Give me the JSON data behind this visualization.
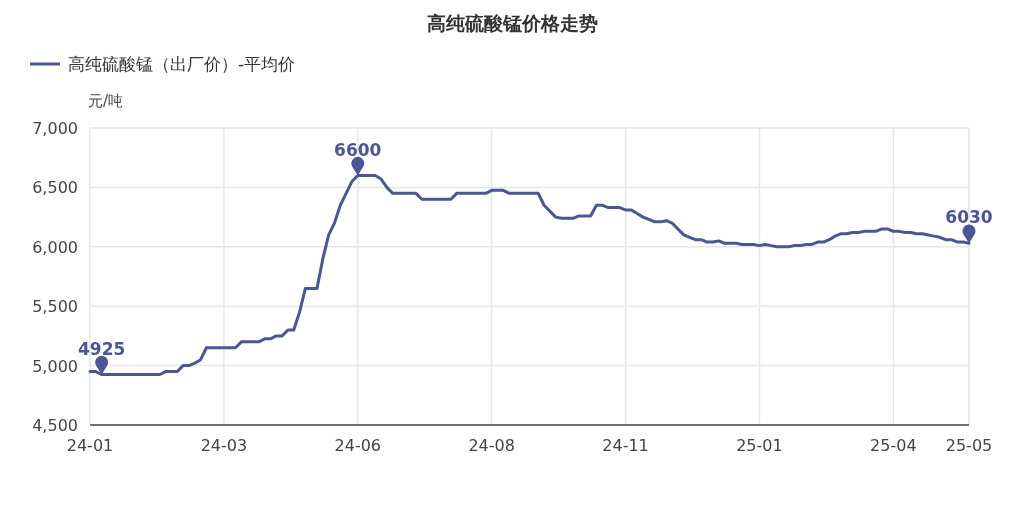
{
  "chart_data": {
    "type": "line",
    "title": "高纯硫酸锰价格走势",
    "ylabel": "元/吨",
    "categories": [
      "24-01",
      null,
      null,
      null,
      null,
      null,
      null,
      null,
      null,
      null,
      null,
      null,
      null,
      null,
      null,
      null,
      null,
      null,
      null,
      null,
      null,
      null,
      null,
      "24-03",
      null,
      null,
      null,
      null,
      null,
      null,
      null,
      null,
      null,
      null,
      null,
      null,
      null,
      null,
      null,
      null,
      null,
      null,
      null,
      null,
      null,
      null,
      "24-06",
      null,
      null,
      null,
      null,
      null,
      null,
      null,
      null,
      null,
      null,
      null,
      null,
      null,
      null,
      null,
      null,
      null,
      null,
      null,
      null,
      null,
      null,
      "24-08",
      null,
      null,
      null,
      null,
      null,
      null,
      null,
      null,
      null,
      null,
      null,
      null,
      null,
      null,
      null,
      null,
      null,
      null,
      null,
      null,
      null,
      null,
      "24-11",
      null,
      null,
      null,
      null,
      null,
      null,
      null,
      null,
      null,
      null,
      null,
      null,
      null,
      null,
      null,
      null,
      null,
      null,
      null,
      null,
      null,
      null,
      "25-01",
      null,
      null,
      null,
      null,
      null,
      null,
      null,
      null,
      null,
      null,
      null,
      null,
      null,
      null,
      null,
      null,
      null,
      null,
      null,
      null,
      null,
      null,
      "25-04",
      null,
      null,
      null,
      null,
      null,
      null,
      null,
      null,
      null,
      null,
      null,
      null,
      "25-05"
    ],
    "series": [
      {
        "name": "高纯硫酸锰（出厂价）-平均价",
        "color": "#4a5698",
        "values": [
          4950,
          4950,
          4925,
          4925,
          4925,
          4925,
          4925,
          4925,
          4925,
          4925,
          4925,
          4925,
          4925,
          4950,
          4950,
          4950,
          5000,
          5000,
          5020,
          5050,
          5150,
          5150,
          5150,
          5150,
          5150,
          5150,
          5200,
          5200,
          5200,
          5200,
          5225,
          5225,
          5250,
          5250,
          5300,
          5300,
          5450,
          5650,
          5650,
          5650,
          5900,
          6100,
          6200,
          6350,
          6450,
          6550,
          6600,
          6600,
          6600,
          6600,
          6570,
          6500,
          6450,
          6450,
          6450,
          6450,
          6450,
          6400,
          6400,
          6400,
          6400,
          6400,
          6400,
          6450,
          6450,
          6450,
          6450,
          6450,
          6450,
          6475,
          6475,
          6475,
          6450,
          6450,
          6450,
          6450,
          6450,
          6450,
          6350,
          6300,
          6250,
          6240,
          6240,
          6240,
          6260,
          6260,
          6260,
          6350,
          6350,
          6330,
          6330,
          6330,
          6310,
          6310,
          6280,
          6250,
          6230,
          6210,
          6210,
          6220,
          6200,
          6150,
          6100,
          6080,
          6060,
          6060,
          6040,
          6040,
          6050,
          6030,
          6030,
          6030,
          6020,
          6020,
          6020,
          6010,
          6020,
          6010,
          6000,
          6000,
          6000,
          6010,
          6010,
          6020,
          6020,
          6040,
          6040,
          6060,
          6090,
          6110,
          6110,
          6120,
          6120,
          6130,
          6130,
          6130,
          6150,
          6150,
          6130,
          6130,
          6120,
          6120,
          6110,
          6110,
          6100,
          6090,
          6080,
          6060,
          6060,
          6040,
          6040,
          6030
        ],
        "value_labels": [
          null,
          null,
          "4925",
          null,
          null,
          null,
          null,
          null,
          null,
          null,
          null,
          null,
          null,
          null,
          null,
          null,
          null,
          null,
          null,
          null,
          null,
          null,
          null,
          null,
          null,
          null,
          null,
          null,
          null,
          null,
          null,
          null,
          null,
          null,
          null,
          null,
          null,
          null,
          null,
          null,
          null,
          null,
          null,
          null,
          null,
          null,
          "6600",
          null,
          null,
          null,
          null,
          null,
          null,
          null,
          null,
          null,
          null,
          null,
          null,
          null,
          null,
          null,
          null,
          null,
          null,
          null,
          null,
          null,
          null,
          null,
          null,
          null,
          null,
          null,
          null,
          null,
          null,
          null,
          null,
          null,
          null,
          null,
          null,
          null,
          null,
          null,
          null,
          null,
          null,
          null,
          null,
          null,
          null,
          null,
          null,
          null,
          null,
          null,
          null,
          null,
          null,
          null,
          null,
          null,
          null,
          null,
          null,
          null,
          null,
          null,
          null,
          null,
          null,
          null,
          null,
          null,
          null,
          null,
          null,
          null,
          null,
          null,
          null,
          null,
          null,
          null,
          null,
          null,
          null,
          null,
          null,
          null,
          null,
          null,
          null,
          null,
          null,
          null,
          null,
          null,
          null,
          null,
          null,
          null,
          null,
          null,
          null,
          null,
          null,
          null,
          null,
          "6030"
        ]
      }
    ],
    "ylim": [
      4500,
      7000
    ],
    "yticks": [
      {
        "value": 4500,
        "label": "4,500"
      },
      {
        "value": 5000,
        "label": "5,000"
      },
      {
        "value": 5500,
        "label": "5,500"
      },
      {
        "value": 6000,
        "label": "6,000"
      },
      {
        "value": 6500,
        "label": "6,500"
      },
      {
        "value": 7000,
        "label": "7,000"
      }
    ],
    "grid": true,
    "legend": "top left",
    "marker": "none",
    "line_style": "solid"
  }
}
